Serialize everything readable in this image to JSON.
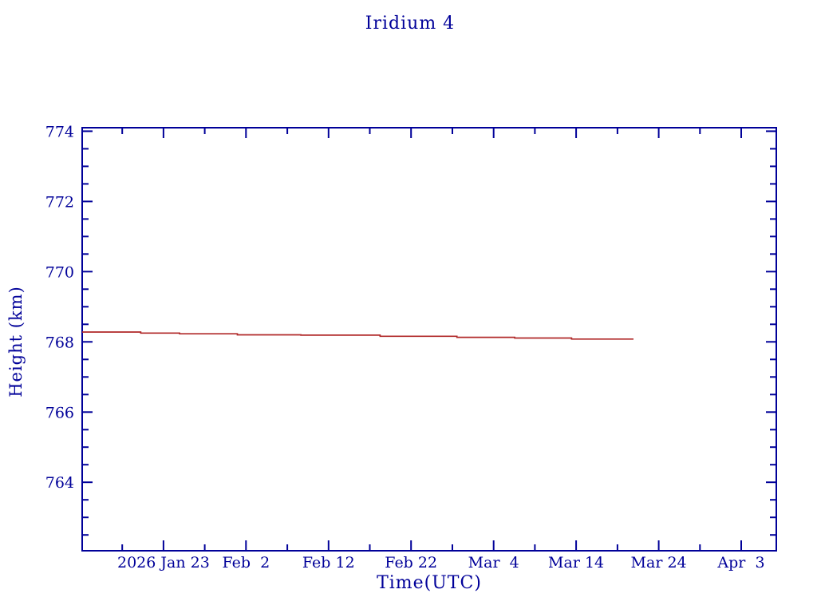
{
  "page": {
    "background": "#ffffff"
  },
  "chart_data": {
    "type": "line",
    "title": "Iridium 4",
    "xlabel": "Time(UTC)",
    "ylabel": "Height (km)",
    "legend": null,
    "grid": false,
    "axis_color": "#000099",
    "line_color": "#b02828",
    "x_axis_note": "days measured from left plot edge (2026 Jan 13)",
    "xlim_days": [
      0,
      84.1
    ],
    "ylim": [
      762.05,
      774.1
    ],
    "x_major_ticks": [
      {
        "day": 9.85,
        "label": "2026 Jan 23"
      },
      {
        "day": 19.85,
        "label": "Feb  2"
      },
      {
        "day": 29.85,
        "label": "Feb 12"
      },
      {
        "day": 39.85,
        "label": "Feb 22"
      },
      {
        "day": 49.85,
        "label": "Mar  4"
      },
      {
        "day": 59.85,
        "label": "Mar 14"
      },
      {
        "day": 69.85,
        "label": "Mar 24"
      },
      {
        "day": 79.85,
        "label": "Apr  3"
      }
    ],
    "x_minor_tick_days": [
      4.85,
      14.85,
      24.85,
      34.85,
      44.85,
      54.85,
      64.85,
      74.85
    ],
    "y_major_ticks": [
      764,
      766,
      768,
      770,
      772,
      774
    ],
    "y_minor_step": 0.5,
    "series": [
      {
        "name": "height_km",
        "style": "step-after",
        "points": [
          {
            "date": "2026 Jan 13",
            "day": 0.0,
            "height_km": 768.28
          },
          {
            "date": "2026 Jan 20",
            "day": 7.1,
            "height_km": 768.25
          },
          {
            "date": "2026 Jan 25",
            "day": 11.8,
            "height_km": 768.23
          },
          {
            "date": "2026 Feb 1",
            "day": 18.8,
            "height_km": 768.2
          },
          {
            "date": "2026 Feb 9",
            "day": 26.5,
            "height_km": 768.19
          },
          {
            "date": "2026 Feb 18",
            "day": 36.1,
            "height_km": 768.16
          },
          {
            "date": "2026 Feb 27",
            "day": 45.4,
            "height_km": 768.13
          },
          {
            "date": "2026 Mar 6",
            "day": 52.4,
            "height_km": 768.11
          },
          {
            "date": "2026 Mar 13",
            "day": 59.3,
            "height_km": 768.08
          },
          {
            "date": "2026 Mar 21",
            "day": 66.8,
            "height_km": 768.08
          }
        ]
      }
    ]
  }
}
